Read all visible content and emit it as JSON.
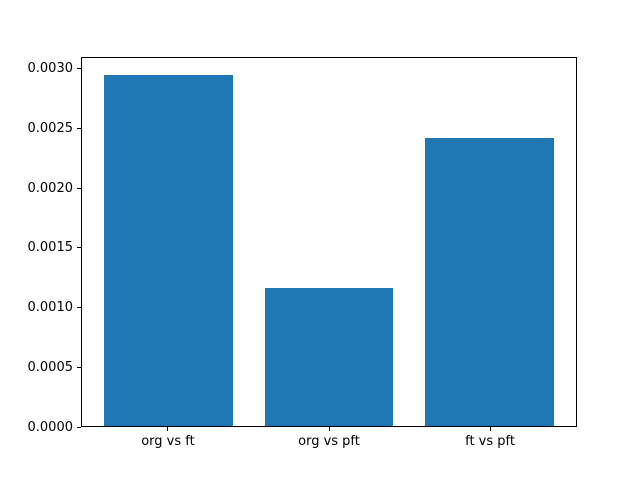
{
  "figure": {
    "background": "#ffffff",
    "text_color": "#000000",
    "axis_color": "#000000"
  },
  "chart_data": {
    "type": "bar",
    "title": "",
    "xlabel": "",
    "ylabel": "",
    "categories": [
      "org vs ft",
      "org vs pft",
      "ft vs pft"
    ],
    "values": [
      0.00296,
      0.00116,
      0.00243
    ],
    "bar_color": "#1f77b4",
    "bar_width_fraction": 0.8,
    "xlim": [
      -0.54,
      2.54
    ],
    "ylim": [
      0,
      0.0031
    ],
    "yticks": [
      0.0,
      0.0005,
      0.001,
      0.0015,
      0.002,
      0.0025,
      0.003
    ],
    "ytick_labels": [
      "0.0000",
      "0.0005",
      "0.0010",
      "0.0015",
      "0.0020",
      "0.0025",
      "0.0030"
    ],
    "grid": false,
    "legend": null
  }
}
